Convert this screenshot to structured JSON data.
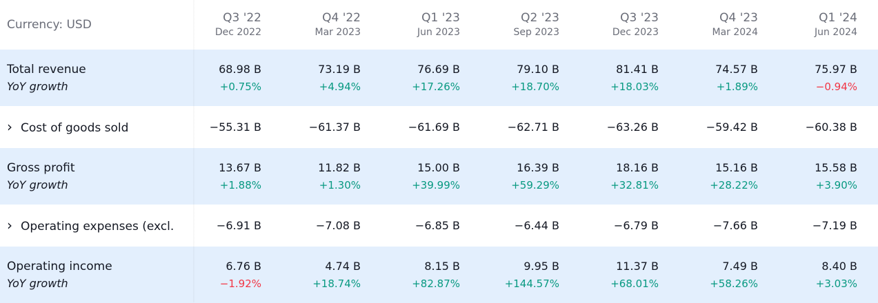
{
  "currency_label": "Currency: USD",
  "colors": {
    "positive": "#089981",
    "negative": "#f23645",
    "highlight": "#e3effd"
  },
  "periods": [
    {
      "quarter": "Q3 '22",
      "date": "Dec 2022"
    },
    {
      "quarter": "Q4 '22",
      "date": "Mar 2023"
    },
    {
      "quarter": "Q1 '23",
      "date": "Jun 2023"
    },
    {
      "quarter": "Q2 '23",
      "date": "Sep 2023"
    },
    {
      "quarter": "Q3 '23",
      "date": "Dec 2023"
    },
    {
      "quarter": "Q4 '23",
      "date": "Mar 2024"
    },
    {
      "quarter": "Q1 '24",
      "date": "Jun 2024"
    }
  ],
  "rows": [
    {
      "label": "Total revenue",
      "highlight": true,
      "expandable": false,
      "growth_label": "YoY growth",
      "values": [
        "68.98 B",
        "73.19 B",
        "76.69 B",
        "79.10 B",
        "81.41 B",
        "74.57 B",
        "75.97 B"
      ],
      "growth": [
        "+0.75%",
        "+4.94%",
        "+17.26%",
        "+18.70%",
        "+18.03%",
        "+1.89%",
        "−0.94%"
      ]
    },
    {
      "label": "Cost of goods sold",
      "highlight": false,
      "expandable": true,
      "values": [
        "−55.31 B",
        "−61.37 B",
        "−61.69 B",
        "−62.71 B",
        "−63.26 B",
        "−59.42 B",
        "−60.38 B"
      ]
    },
    {
      "label": "Gross profit",
      "highlight": true,
      "expandable": false,
      "growth_label": "YoY growth",
      "values": [
        "13.67 B",
        "11.82 B",
        "15.00 B",
        "16.39 B",
        "18.16 B",
        "15.16 B",
        "15.58 B"
      ],
      "growth": [
        "+1.88%",
        "+1.30%",
        "+39.99%",
        "+59.29%",
        "+32.81%",
        "+28.22%",
        "+3.90%"
      ]
    },
    {
      "label": "Operating expenses (excl.",
      "highlight": false,
      "expandable": true,
      "values": [
        "−6.91 B",
        "−7.08 B",
        "−6.85 B",
        "−6.44 B",
        "−6.79 B",
        "−7.66 B",
        "−7.19 B"
      ]
    },
    {
      "label": "Operating income",
      "highlight": true,
      "expandable": false,
      "growth_label": "YoY growth",
      "values": [
        "6.76 B",
        "4.74 B",
        "8.15 B",
        "9.95 B",
        "11.37 B",
        "7.49 B",
        "8.40 B"
      ],
      "growth": [
        "−1.92%",
        "+18.74%",
        "+82.87%",
        "+144.57%",
        "+68.01%",
        "+58.26%",
        "+3.03%"
      ]
    }
  ]
}
